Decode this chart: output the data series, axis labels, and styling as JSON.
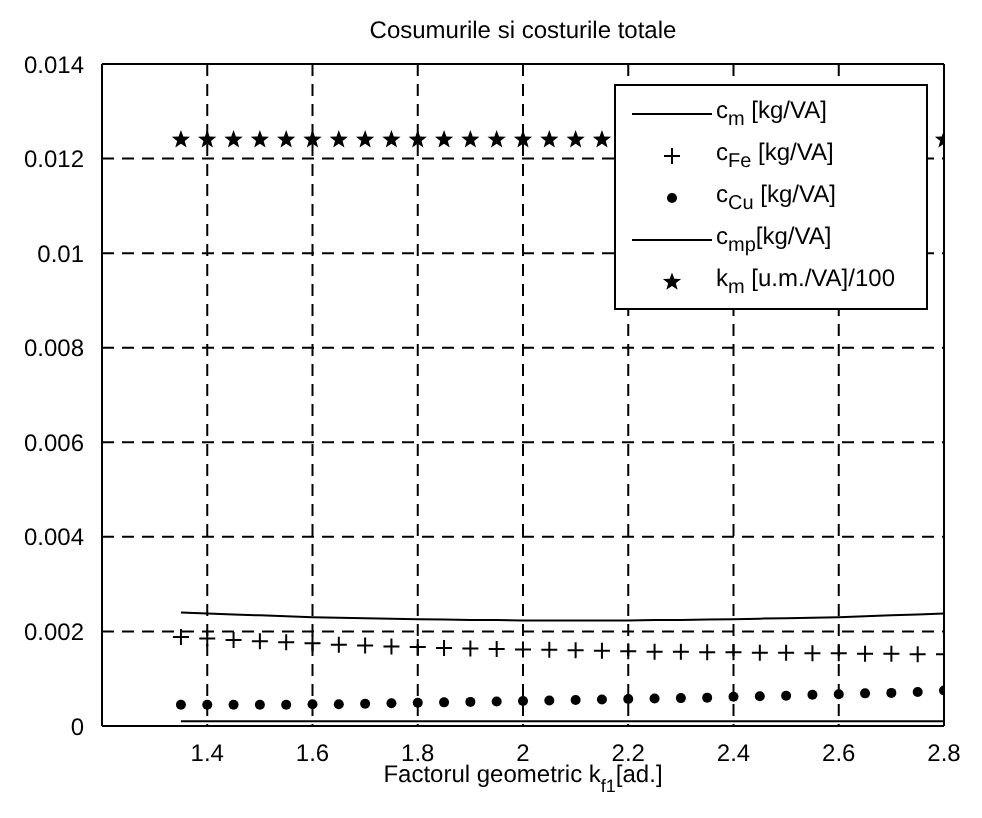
{
  "chart_data": {
    "type": "line",
    "title": "Cosumurile si costurile totale",
    "xlabel": "Factorul geometric k$_{f1}$[ad.]",
    "x": [
      1.35,
      1.4,
      1.45,
      1.5,
      1.55,
      1.6,
      1.65,
      1.7,
      1.75,
      1.8,
      1.85,
      1.9,
      1.95,
      2.0,
      2.05,
      2.1,
      2.15,
      2.2,
      2.25,
      2.3,
      2.35,
      2.4,
      2.45,
      2.5,
      2.55,
      2.6,
      2.65,
      2.7,
      2.75,
      2.8
    ],
    "series": [
      {
        "name": "c$_{m}$ [kg/VA]",
        "color": "#000000",
        "marker": "none",
        "line_style": "solid",
        "values": [
          0.0024,
          0.00238,
          0.00236,
          0.00234,
          0.00232,
          0.0023,
          0.00229,
          0.00228,
          0.00227,
          0.00226,
          0.00225,
          0.00224,
          0.00224,
          0.00223,
          0.00223,
          0.00223,
          0.00223,
          0.00223,
          0.00224,
          0.00224,
          0.00225,
          0.00226,
          0.00227,
          0.00228,
          0.00229,
          0.0023,
          0.00232,
          0.00234,
          0.00236,
          0.00238
        ]
      },
      {
        "name": "c$_{Fe}$ [kg/VA]",
        "type": "scatter",
        "color": "#000000",
        "marker": "cross",
        "values": [
          0.00188,
          0.00185,
          0.00182,
          0.00179,
          0.00177,
          0.00175,
          0.00172,
          0.0017,
          0.00168,
          0.00167,
          0.00165,
          0.00164,
          0.00163,
          0.00162,
          0.00161,
          0.0016,
          0.00159,
          0.00158,
          0.00157,
          0.00157,
          0.00156,
          0.00156,
          0.00155,
          0.00155,
          0.00154,
          0.00154,
          0.00153,
          0.00153,
          0.00152,
          0.00152
        ]
      },
      {
        "name": "c$_{Cu}$ [kg/VA]",
        "type": "scatter",
        "color": "#000000",
        "marker": "circle",
        "values": [
          0.00045,
          0.00045,
          0.00045,
          0.00045,
          0.00045,
          0.00046,
          0.00046,
          0.00047,
          0.00048,
          0.00049,
          0.0005,
          0.00051,
          0.00052,
          0.00053,
          0.00054,
          0.00055,
          0.00056,
          0.00057,
          0.00058,
          0.00059,
          0.0006,
          0.00062,
          0.00063,
          0.00064,
          0.00066,
          0.00067,
          0.00069,
          0.0007,
          0.00072,
          0.00075
        ]
      },
      {
        "name": "c$_{mp}$[kg/VA]",
        "color": "#000000",
        "marker": "none",
        "line_style": "solid",
        "values": [
          0.0001,
          0.0001,
          0.0001,
          0.0001,
          0.0001,
          0.0001,
          0.0001,
          0.0001,
          0.0001,
          0.0001,
          0.0001,
          0.0001,
          0.0001,
          0.0001,
          0.0001,
          0.0001,
          0.0001,
          0.0001,
          0.0001,
          0.0001,
          0.0001,
          0.0001,
          0.0001,
          0.0001,
          0.0001,
          0.0001,
          0.0001,
          0.0001,
          0.0001,
          0.0001
        ]
      },
      {
        "name": "k$_{m}$ [u.m./VA]/100",
        "type": "scatter",
        "color": "#000000",
        "marker": "star",
        "values": [
          0.0124,
          0.0124,
          0.0124,
          0.0124,
          0.0124,
          0.0124,
          0.0124,
          0.0124,
          0.0124,
          0.0124,
          0.0124,
          0.0124,
          0.0124,
          0.0124,
          0.0124,
          0.0124,
          0.0124,
          null,
          null,
          null,
          null,
          null,
          null,
          null,
          null,
          null,
          null,
          null,
          null,
          0.0124
        ]
      }
    ],
    "xlim": [
      1.2,
      2.8
    ],
    "xticks": [
      1.4,
      1.6,
      1.8,
      2,
      2.2,
      2.4,
      2.6,
      2.8
    ],
    "ylim": [
      0,
      0.014
    ],
    "yticks": [
      0,
      0.002,
      0.004,
      0.006,
      0.008,
      0.01,
      0.012,
      0.014
    ],
    "grid": true,
    "legend": "top right"
  }
}
